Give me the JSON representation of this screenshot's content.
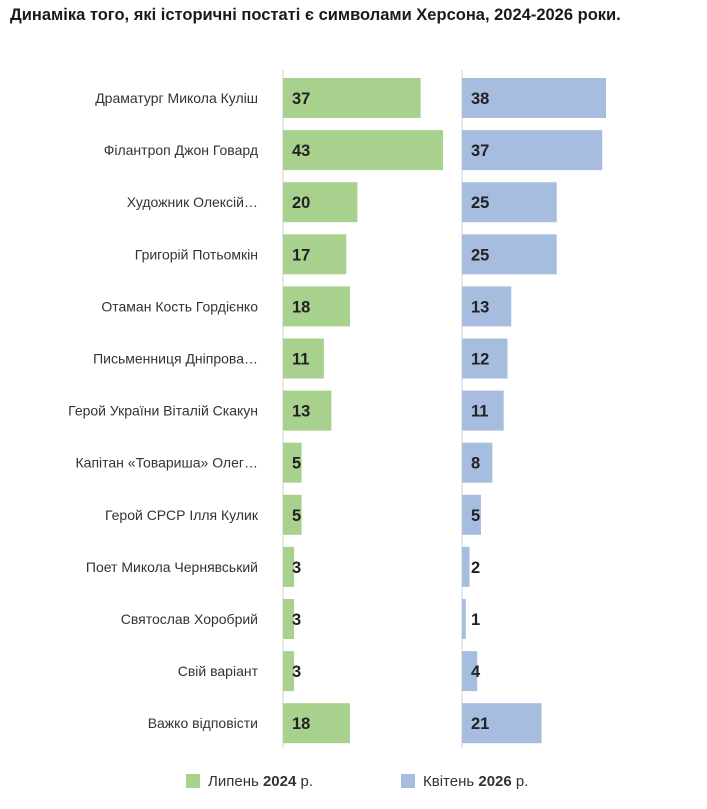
{
  "chart_data": {
    "type": "bar",
    "orientation": "horizontal",
    "title": "Динаміка того, які історичні постаті є символами Херсона, 2024-2026 роки.",
    "categories": [
      "Драматург Микола Куліш",
      "Філантроп Джон Говард",
      "Художник Олексій…",
      "Григорій Потьомкін",
      "Отаман Кость Гордієнко",
      "Письменниця Дніпрова…",
      "Герой України Віталій Скакун",
      "Капітан «Товариша» Олег…",
      "Герой СРСР Ілля Кулик",
      "Поет Микола Чернявський",
      "Святослав Хоробрий",
      "Свій варіант",
      "Важко відповісти"
    ],
    "series": [
      {
        "name": "Липень 2024 р.",
        "legend_prefix": "Липень ",
        "legend_year": "2024",
        "legend_suffix": " р.",
        "color": "#a9d18e",
        "values": [
          37,
          43,
          20,
          17,
          18,
          11,
          13,
          5,
          5,
          3,
          3,
          3,
          18
        ]
      },
      {
        "name": "Квітень 2026 р.",
        "legend_prefix": "Квітень ",
        "legend_year": "2026",
        "legend_suffix": " р.",
        "color": "#a6bde0",
        "values": [
          38,
          37,
          25,
          25,
          13,
          12,
          11,
          8,
          5,
          2,
          1,
          4,
          21
        ]
      }
    ],
    "legend_position": "bottom",
    "grid": false
  }
}
